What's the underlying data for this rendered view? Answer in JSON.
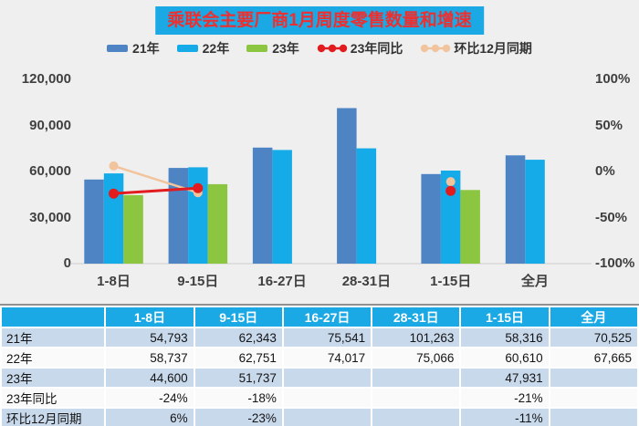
{
  "page": {
    "background": "#EFEFF0"
  },
  "title": {
    "text": "乘联会主要厂商1月周度零售数量和增速",
    "bg": "#1BA9E5",
    "color": "#EE2F2F"
  },
  "legend": {
    "items": [
      {
        "label": "21年",
        "marker": "bar",
        "color": "#4E84C4"
      },
      {
        "label": "22年",
        "marker": "bar",
        "color": "#15ABE8"
      },
      {
        "label": "23年",
        "marker": "bar",
        "color": "#8CC540"
      },
      {
        "label": "23年同比",
        "marker": "line-dots",
        "color": "#E11B1E"
      },
      {
        "label": "环比12月同期",
        "marker": "line-dots",
        "color": "#F2C49E"
      }
    ]
  },
  "chart_data": {
    "type": "bar",
    "title": "乘联会主要厂商1月周度零售数量和增速",
    "categories": [
      "1-8日",
      "9-15日",
      "16-27日",
      "28-31日",
      "1-15日",
      "全月"
    ],
    "series": [
      {
        "name": "21年",
        "color": "#4E84C4",
        "values": [
          54793,
          62343,
          75541,
          101263,
          58316,
          70525
        ]
      },
      {
        "name": "22年",
        "color": "#15ABE8",
        "values": [
          58737,
          62751,
          74017,
          75066,
          60610,
          67665
        ]
      },
      {
        "name": "23年",
        "color": "#8CC540",
        "values": [
          44600,
          51737,
          null,
          null,
          47931,
          null
        ]
      }
    ],
    "line_series": [
      {
        "name": "环比12月同期",
        "color": "#F2C49E",
        "dot_radius": 5,
        "stroke_width": 2.5,
        "values_pct": [
          6,
          -23,
          null,
          null,
          -11,
          null
        ]
      },
      {
        "name": "23年同比",
        "color": "#E11B1E",
        "dot_radius": 5.5,
        "stroke_width": 3,
        "values_pct": [
          -24,
          -18,
          null,
          null,
          -21,
          null
        ]
      }
    ],
    "left_axis": {
      "ticks": [
        "120,000",
        "90,000",
        "60,000",
        "30,000",
        "0"
      ],
      "min": 0,
      "max": 120000
    },
    "right_axis": {
      "ticks": [
        "100%",
        "50%",
        "0%",
        "-50%",
        "-100%"
      ],
      "min": -100,
      "max": 100
    },
    "grid": false,
    "legend_position": "top",
    "baseline_color": "#D9D9D9"
  },
  "table": {
    "header": [
      "",
      "1-8日",
      "9-15日",
      "16-27日",
      "28-31日",
      "1-15日",
      "全月"
    ],
    "header_bg": "#1BA9E5",
    "stripe_odd": "#C9D9EC",
    "stripe_even": "#FAFAFA",
    "rows": [
      {
        "label": "21年",
        "cells": [
          "54,793",
          "62,343",
          "75,541",
          "101,263",
          "58,316",
          "70,525"
        ]
      },
      {
        "label": "22年",
        "cells": [
          "58,737",
          "62,751",
          "74,017",
          "75,066",
          "60,610",
          "67,665"
        ]
      },
      {
        "label": "23年",
        "cells": [
          "44,600",
          "51,737",
          "",
          "",
          "47,931",
          ""
        ]
      },
      {
        "label": "23年同比",
        "cells": [
          "-24%",
          "-18%",
          "",
          "",
          "-21%",
          ""
        ]
      },
      {
        "label": "环比12月同期",
        "cells": [
          "6%",
          "-23%",
          "",
          "",
          "-11%",
          ""
        ]
      }
    ]
  }
}
